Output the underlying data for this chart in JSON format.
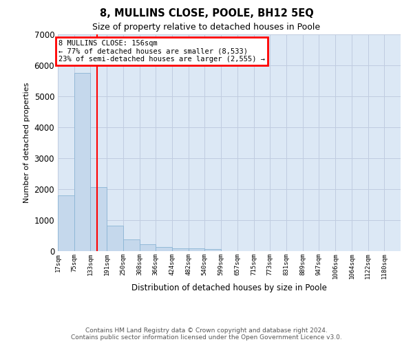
{
  "title": "8, MULLINS CLOSE, POOLE, BH12 5EQ",
  "subtitle": "Size of property relative to detached houses in Poole",
  "xlabel": "Distribution of detached houses by size in Poole",
  "ylabel": "Number of detached properties",
  "footer_line1": "Contains HM Land Registry data © Crown copyright and database right 2024.",
  "footer_line2": "Contains public sector information licensed under the Open Government Licence v3.0.",
  "bin_edges": [
    17,
    75,
    133,
    191,
    250,
    308,
    366,
    424,
    482,
    540,
    599,
    657,
    715,
    773,
    831,
    889,
    947,
    1006,
    1064,
    1122,
    1180
  ],
  "bin_labels": [
    "17sqm",
    "75sqm",
    "133sqm",
    "191sqm",
    "250sqm",
    "308sqm",
    "366sqm",
    "424sqm",
    "482sqm",
    "540sqm",
    "599sqm",
    "657sqm",
    "715sqm",
    "773sqm",
    "831sqm",
    "889sqm",
    "947sqm",
    "1006sqm",
    "1064sqm",
    "1122sqm",
    "1180sqm"
  ],
  "bar_heights": [
    1800,
    5750,
    2075,
    820,
    370,
    230,
    140,
    100,
    100,
    60,
    0,
    0,
    0,
    0,
    0,
    0,
    0,
    0,
    0,
    0
  ],
  "bar_color": "#c5d8ec",
  "bar_edgecolor": "#8ab4d4",
  "grid_color": "#c0cce0",
  "background_color": "#dce8f5",
  "red_line_x": 156,
  "annotation_line1": "8 MULLINS CLOSE: 156sqm",
  "annotation_line2": "← 77% of detached houses are smaller (8,533)",
  "annotation_line3": "23% of semi-detached houses are larger (2,555) →",
  "ylim": [
    0,
    7000
  ],
  "yticks": [
    0,
    1000,
    2000,
    3000,
    4000,
    5000,
    6000,
    7000
  ]
}
